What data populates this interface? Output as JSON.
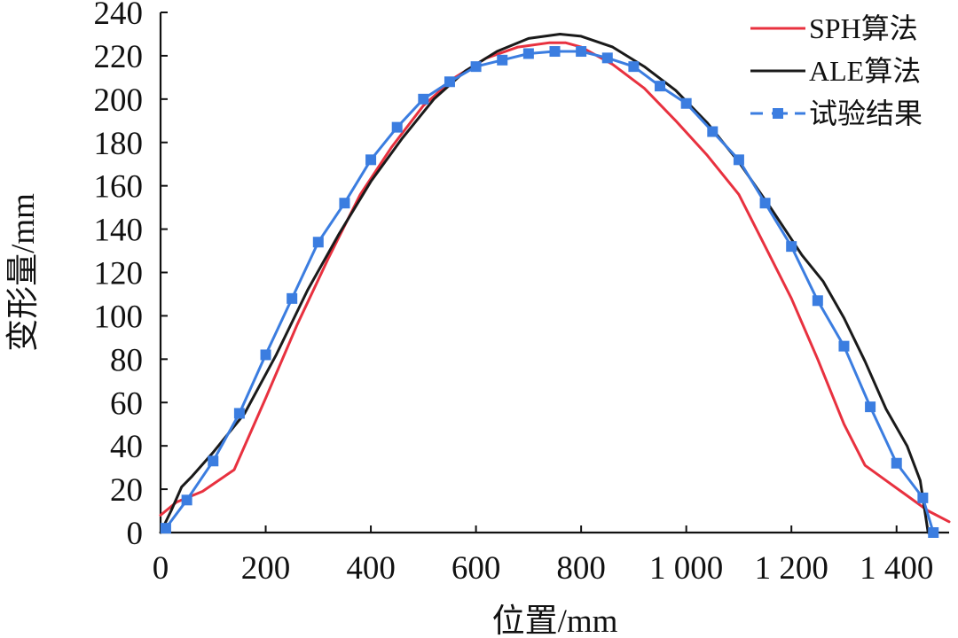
{
  "chart_data": {
    "type": "line",
    "title": "",
    "xlabel": "位置/mm",
    "ylabel": "变形量/mm",
    "xlim": [
      0,
      1500
    ],
    "ylim": [
      0,
      240
    ],
    "xticks": [
      0,
      200,
      400,
      600,
      800,
      1000,
      1200,
      1400
    ],
    "xtick_labels": [
      "0",
      "200",
      "400",
      "600",
      "800",
      "1 000",
      "1 200",
      "1 400"
    ],
    "yticks": [
      0,
      20,
      40,
      60,
      80,
      100,
      120,
      140,
      160,
      180,
      200,
      220,
      240
    ],
    "ytick_labels": [
      "0",
      "20",
      "40",
      "60",
      "80",
      "100",
      "120",
      "140",
      "160",
      "180",
      "200",
      "220",
      "240"
    ],
    "legend_position": "top-right",
    "series": [
      {
        "name": "SPH算法",
        "color": "#e8313f",
        "style": "solid",
        "marker": "none",
        "x": [
          0,
          30,
          80,
          140,
          200,
          260,
          320,
          380,
          440,
          500,
          560,
          620,
          680,
          740,
          770,
          800,
          860,
          920,
          980,
          1040,
          1100,
          1150,
          1200,
          1250,
          1300,
          1340,
          1380,
          1420,
          1460,
          1500
        ],
        "y": [
          8,
          14,
          19,
          29,
          62,
          96,
          127,
          156,
          178,
          197,
          210,
          219,
          224,
          226,
          226,
          224,
          216,
          205,
          190,
          174,
          156,
          132,
          108,
          80,
          50,
          31,
          24,
          17,
          10,
          5
        ]
      },
      {
        "name": "ALE算法",
        "color": "#1a1a1a",
        "style": "solid",
        "marker": "none",
        "x": [
          0,
          20,
          40,
          60,
          100,
          160,
          220,
          280,
          340,
          400,
          460,
          520,
          580,
          640,
          700,
          760,
          800,
          860,
          920,
          980,
          1040,
          1100,
          1160,
          1220,
          1260,
          1300,
          1340,
          1380,
          1420,
          1445,
          1460
        ],
        "y": [
          0,
          10,
          21,
          26,
          37,
          55,
          82,
          112,
          138,
          162,
          182,
          200,
          213,
          222,
          228,
          230,
          229,
          224,
          215,
          204,
          189,
          171,
          150,
          128,
          116,
          99,
          79,
          57,
          40,
          24,
          0
        ]
      },
      {
        "name": "试验结果",
        "color": "#3b7de0",
        "style": "dashed-solid",
        "marker": "square",
        "x": [
          10,
          50,
          100,
          150,
          200,
          250,
          300,
          350,
          400,
          450,
          500,
          550,
          600,
          650,
          700,
          750,
          800,
          850,
          900,
          950,
          1000,
          1050,
          1100,
          1150,
          1200,
          1250,
          1300,
          1350,
          1400,
          1450,
          1470
        ],
        "y": [
          2,
          15,
          33,
          55,
          82,
          108,
          134,
          152,
          172,
          187,
          200,
          208,
          215,
          218,
          221,
          222,
          222,
          219,
          215,
          206,
          198,
          185,
          172,
          152,
          132,
          107,
          86,
          58,
          32,
          16,
          0
        ]
      }
    ]
  }
}
